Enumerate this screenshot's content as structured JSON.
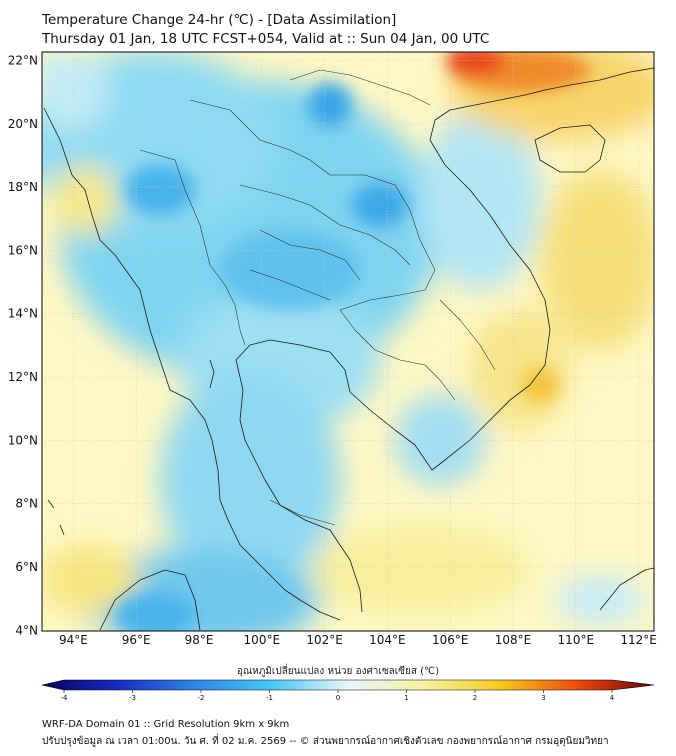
{
  "header": {
    "title": "Temperature Change 24-hr (℃) - [Data Assimilation]",
    "subtitle": "Thursday 01 Jan, 18 UTC FCST+054, Valid at :: Sun 04 Jan, 00 UTC"
  },
  "map": {
    "lon_range": [
      93,
      112.5
    ],
    "lat_range": [
      4,
      22.2
    ],
    "lat_ticks": [
      "22°N",
      "20°N",
      "18°N",
      "16°N",
      "14°N",
      "12°N",
      "10°N",
      "8°N",
      "6°N",
      "4°N"
    ],
    "lon_ticks": [
      "94°E",
      "96°E",
      "98°E",
      "100°E",
      "102°E",
      "104°E",
      "106°E",
      "108°E",
      "110°E",
      "112°E"
    ]
  },
  "colorbar": {
    "label": "อุณหภูมิเปลี่ยนแปลง หน่วย องศาเซลเซียส (℃)",
    "min": -4,
    "max": 4,
    "ticks": [
      "-4",
      "-3",
      "-2",
      "-1",
      "0",
      "1",
      "2",
      "3",
      "4"
    ],
    "colors": [
      "#08005e",
      "#1a2bc4",
      "#2f86e6",
      "#45c8f5",
      "#e8f6fb",
      "#f6f3a0",
      "#f8c81c",
      "#ef4a0e",
      "#6a0006"
    ]
  },
  "footer": {
    "line1": "WRF-DA Domain 01 :: Grid Resolution 9km x 9km",
    "line2": "ปรับปรุงข้อมูล ณ เวลา 01:00น. วัน ศ. ที่ 02 ม.ค. 2569 -- © ส่วนพยากรณ์อากาศเชิงตัวเลข กองพยากรณ์อากาศ กรมอุตุนิยมวิทยา"
  }
}
